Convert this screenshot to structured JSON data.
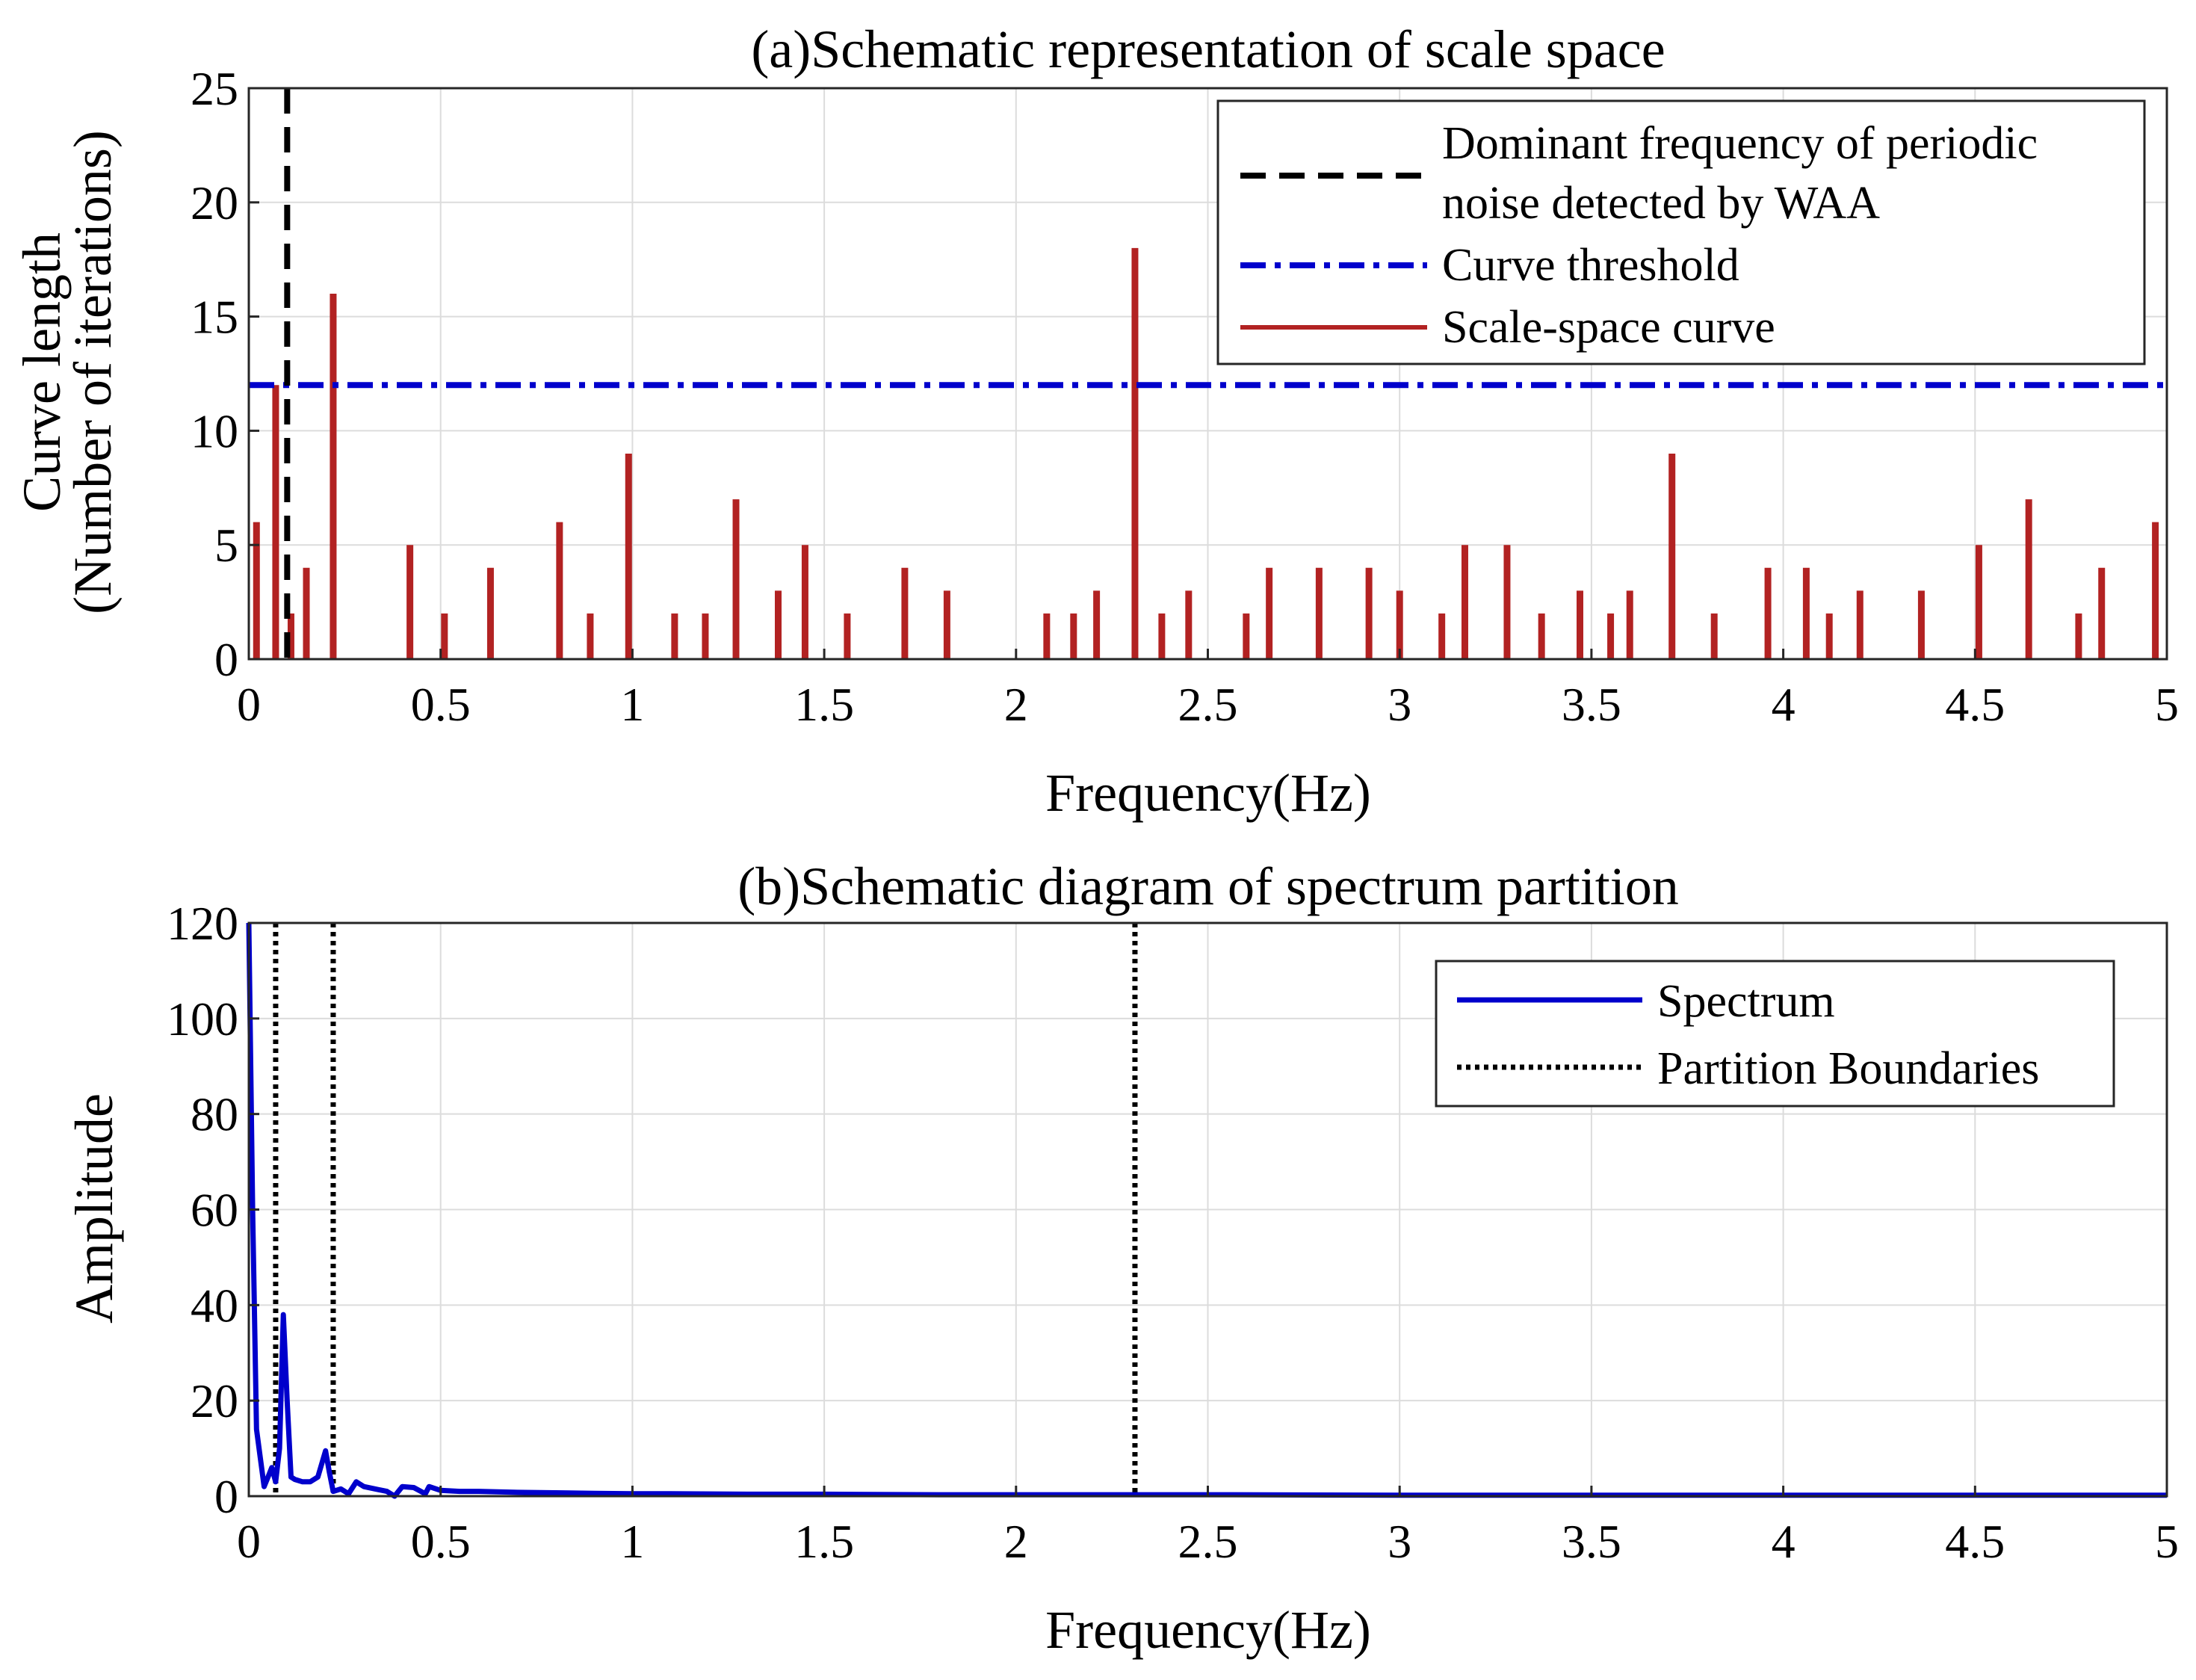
{
  "chart_data": [
    {
      "type": "bar",
      "title": "(a)Schematic representation of scale space",
      "xlabel": "Frequency(Hz)",
      "ylabel_line1": "Curve length",
      "ylabel_line2": "(Number of iterations)",
      "xlim": [
        0,
        5
      ],
      "ylim": [
        0,
        25
      ],
      "xticks": [
        "0",
        "0.5",
        "1",
        "1.5",
        "2",
        "2.5",
        "3",
        "3.5",
        "4",
        "4.5",
        "5"
      ],
      "yticks": [
        "0",
        "5",
        "10",
        "15",
        "20",
        "25"
      ],
      "grid": true,
      "legend_position": "top-right",
      "series": [
        {
          "name": "Scale-space curve",
          "color": "#b22222",
          "x": [
            0.02,
            0.07,
            0.11,
            0.15,
            0.22,
            0.42,
            0.51,
            0.63,
            0.81,
            0.89,
            0.99,
            1.11,
            1.19,
            1.27,
            1.38,
            1.45,
            1.56,
            1.71,
            1.82,
            2.08,
            2.15,
            2.21,
            2.31,
            2.38,
            2.45,
            2.6,
            2.66,
            2.79,
            2.92,
            3.0,
            3.11,
            3.17,
            3.28,
            3.37,
            3.47,
            3.55,
            3.6,
            3.71,
            3.82,
            3.96,
            4.06,
            4.12,
            4.2,
            4.36,
            4.51,
            4.64,
            4.77,
            4.83,
            4.97
          ],
          "values": [
            6,
            12,
            2,
            4,
            16,
            5,
            2,
            4,
            6,
            2,
            9,
            2,
            2,
            7,
            3,
            5,
            2,
            4,
            3,
            2,
            2,
            3,
            18,
            2,
            3,
            2,
            4,
            4,
            4,
            3,
            2,
            5,
            5,
            2,
            3,
            2,
            3,
            9,
            2,
            4,
            4,
            2,
            3,
            3,
            5,
            7,
            2,
            4,
            6
          ]
        }
      ],
      "annotations": [
        {
          "name": "Dominant frequency of periodic noise detected by WAA",
          "type": "vline",
          "x": 0.1,
          "style": "dashed",
          "color": "#000000"
        },
        {
          "name": "Curve threshold",
          "type": "hline",
          "y": 12,
          "style": "dashdot",
          "color": "#0000cc"
        }
      ],
      "legend": {
        "dominant_line1": "Dominant frequency of periodic",
        "dominant_line2": "noise detected by WAA",
        "threshold": "Curve threshold",
        "curve": "Scale-space curve"
      }
    },
    {
      "type": "line",
      "title": "(b)Schematic diagram of spectrum partition",
      "xlabel": "Frequency(Hz)",
      "ylabel": "Amplitude",
      "xlim": [
        0,
        5
      ],
      "ylim": [
        0,
        120
      ],
      "xticks": [
        "0",
        "0.5",
        "1",
        "1.5",
        "2",
        "2.5",
        "3",
        "3.5",
        "4",
        "4.5",
        "5"
      ],
      "yticks": [
        "0",
        "20",
        "40",
        "60",
        "80",
        "100",
        "120"
      ],
      "grid": true,
      "legend_position": "top-right",
      "series": [
        {
          "name": "Spectrum",
          "color": "#0000cc",
          "x": [
            0,
            0.01,
            0.02,
            0.03,
            0.04,
            0.05,
            0.06,
            0.07,
            0.08,
            0.09,
            0.1,
            0.11,
            0.12,
            0.14,
            0.16,
            0.18,
            0.2,
            0.21,
            0.22,
            0.24,
            0.26,
            0.28,
            0.3,
            0.33,
            0.36,
            0.38,
            0.4,
            0.43,
            0.46,
            0.47,
            0.5,
            0.55,
            0.6,
            0.7,
            0.8,
            0.9,
            1.0,
            1.1,
            1.3,
            1.5,
            1.8,
            2.0,
            2.5,
            3.0,
            3.5,
            4.0,
            4.5,
            5.0
          ],
          "values": [
            120,
            60,
            14,
            8,
            2,
            4,
            6,
            3,
            10,
            38,
            20,
            4,
            3.5,
            3,
            3,
            4,
            9.5,
            5,
            1,
            1.5,
            0.5,
            3,
            2,
            1.5,
            1,
            0,
            2,
            1.8,
            0.5,
            2,
            1.2,
            1,
            1,
            0.8,
            0.7,
            0.6,
            0.5,
            0.5,
            0.4,
            0.4,
            0.3,
            0.3,
            0.3,
            0.2,
            0.2,
            0.2,
            0.2,
            0.2
          ]
        }
      ],
      "partition_boundaries": [
        0.07,
        0.22,
        2.31
      ],
      "boundary_color": "#000000",
      "legend": {
        "spectrum": "Spectrum",
        "boundaries": "Partition Boundaries"
      }
    }
  ]
}
